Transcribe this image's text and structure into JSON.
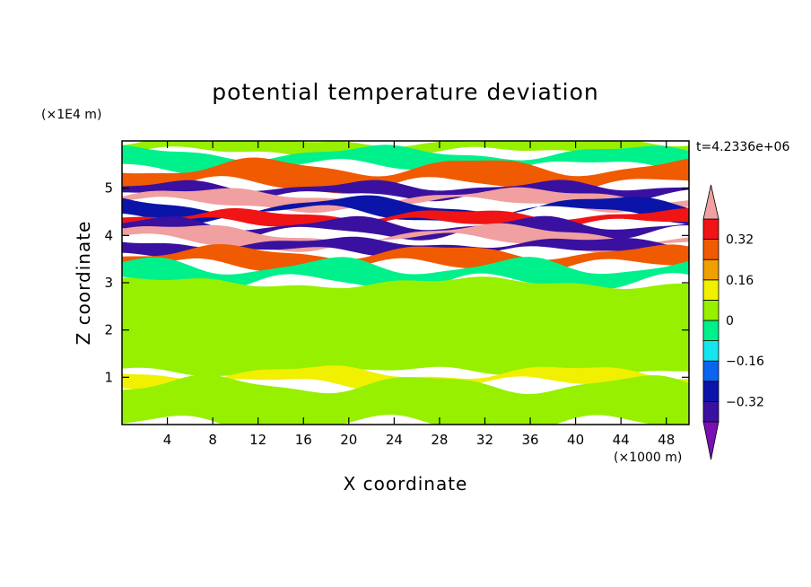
{
  "chart_data": {
    "type": "heatmap",
    "title": "potential temperature deviation",
    "xlabel": "X coordinate",
    "ylabel": "Z coordinate",
    "x_multiplier": "(×1000 m)",
    "y_multiplier": "(×1E4 m)",
    "time_label": "t=4.2336e+06",
    "xlim": [
      0,
      50
    ],
    "ylim": [
      0,
      6
    ],
    "x_ticks": [
      "4",
      "8",
      "12",
      "16",
      "20",
      "24",
      "28",
      "32",
      "36",
      "40",
      "44",
      "48"
    ],
    "y_ticks": [
      "1",
      "2",
      "3",
      "4",
      "5"
    ],
    "colorbar": {
      "levels": [
        -0.4,
        -0.32,
        -0.24,
        -0.16,
        -0.08,
        0,
        0.08,
        0.16,
        0.24,
        0.32,
        0.4
      ],
      "tick_labels": [
        "0.32",
        "0.16",
        "0",
        "−0.16",
        "−0.32"
      ],
      "tick_values": [
        0.32,
        0.16,
        0,
        -0.16,
        -0.32
      ],
      "colors": [
        "#7a0fb4",
        "#3a10a0",
        "#0a14a8",
        "#0a64f0",
        "#14e6f0",
        "#00f08c",
        "#96f000",
        "#f0f000",
        "#f0a000",
        "#f05a00",
        "#f01414",
        "#f0a0a0"
      ],
      "extend": "both"
    },
    "bands": [
      {
        "y0": 5.75,
        "y1": 6.0,
        "value": 0.0
      },
      {
        "y0": 5.45,
        "y1": 5.75,
        "value": -0.05
      },
      {
        "y0": 5.05,
        "y1": 5.45,
        "value": 0.3
      },
      {
        "y0": 4.85,
        "y1": 5.05,
        "value": -0.36
      },
      {
        "y0": 4.65,
        "y1": 4.85,
        "value": 0.42
      },
      {
        "y0": 4.45,
        "y1": 4.65,
        "value": -0.3
      },
      {
        "y0": 4.25,
        "y1": 4.45,
        "value": 0.38
      },
      {
        "y0": 4.05,
        "y1": 4.25,
        "value": -0.38
      },
      {
        "y0": 3.85,
        "y1": 4.05,
        "value": 0.42
      },
      {
        "y0": 3.65,
        "y1": 3.85,
        "value": -0.34
      },
      {
        "y0": 3.35,
        "y1": 3.65,
        "value": 0.3
      },
      {
        "y0": 3.0,
        "y1": 3.35,
        "value": -0.05
      },
      {
        "y0": 1.1,
        "y1": 3.0,
        "value": 0.02
      },
      {
        "y0": 0.85,
        "y1": 1.1,
        "value": 0.12
      },
      {
        "y0": 0.0,
        "y1": 0.85,
        "value": 0.03
      }
    ]
  }
}
